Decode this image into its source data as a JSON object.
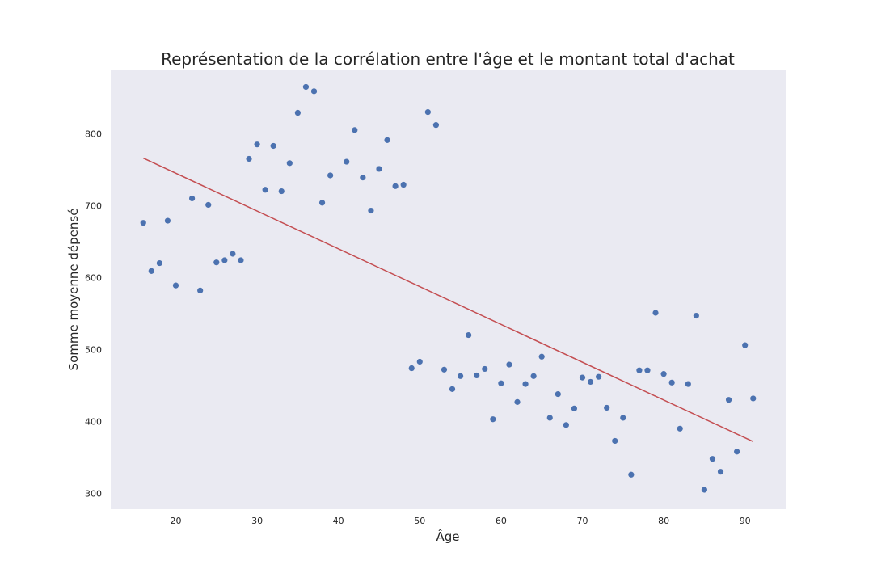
{
  "chart_data": {
    "type": "scatter",
    "title": "Représentation de la corrélation entre l'âge et le montant total d'achat",
    "xlabel": "Âge",
    "ylabel": "Somme moyenne dépensé",
    "xlim": [
      12,
      95
    ],
    "ylim": [
      278,
      888
    ],
    "xticks": [
      20,
      30,
      40,
      50,
      60,
      70,
      80,
      90
    ],
    "yticks": [
      300,
      400,
      500,
      600,
      700,
      800
    ],
    "grid": false,
    "colors": {
      "plot_background": "#eaeaf2",
      "points": "#4c72b0",
      "line": "#c44e52"
    },
    "series": [
      {
        "kind": "points",
        "x": [
          16,
          17,
          18,
          19,
          20,
          22,
          23,
          24,
          25,
          26,
          27,
          28,
          29,
          30,
          31,
          32,
          33,
          34,
          35,
          36,
          37,
          38,
          39,
          41,
          42,
          43,
          44,
          45,
          46,
          47,
          48,
          49,
          50,
          51,
          52,
          53,
          54,
          55,
          56,
          57,
          58,
          59,
          60,
          61,
          62,
          63,
          64,
          65,
          66,
          67,
          68,
          69,
          70,
          71,
          72,
          73,
          74,
          75,
          76,
          77,
          78,
          79,
          80,
          81,
          82,
          83,
          84,
          85,
          86,
          87,
          88,
          89,
          90,
          91
        ],
        "y": [
          676,
          609,
          620,
          679,
          589,
          710,
          582,
          701,
          621,
          624,
          633,
          624,
          765,
          785,
          722,
          783,
          720,
          759,
          829,
          865,
          859,
          704,
          742,
          761,
          805,
          739,
          693,
          751,
          791,
          727,
          729,
          474,
          483,
          830,
          812,
          472,
          445,
          463,
          520,
          464,
          473,
          403,
          453,
          479,
          427,
          452,
          463,
          490,
          405,
          438,
          395,
          418,
          461,
          455,
          462,
          419,
          373,
          405,
          326,
          471,
          471,
          551,
          466,
          454,
          390,
          452,
          547,
          305,
          348,
          330,
          430,
          358,
          506,
          432
        ]
      },
      {
        "kind": "trend-line",
        "x": [
          16,
          91
        ],
        "y": [
          766,
          372
        ]
      }
    ]
  }
}
